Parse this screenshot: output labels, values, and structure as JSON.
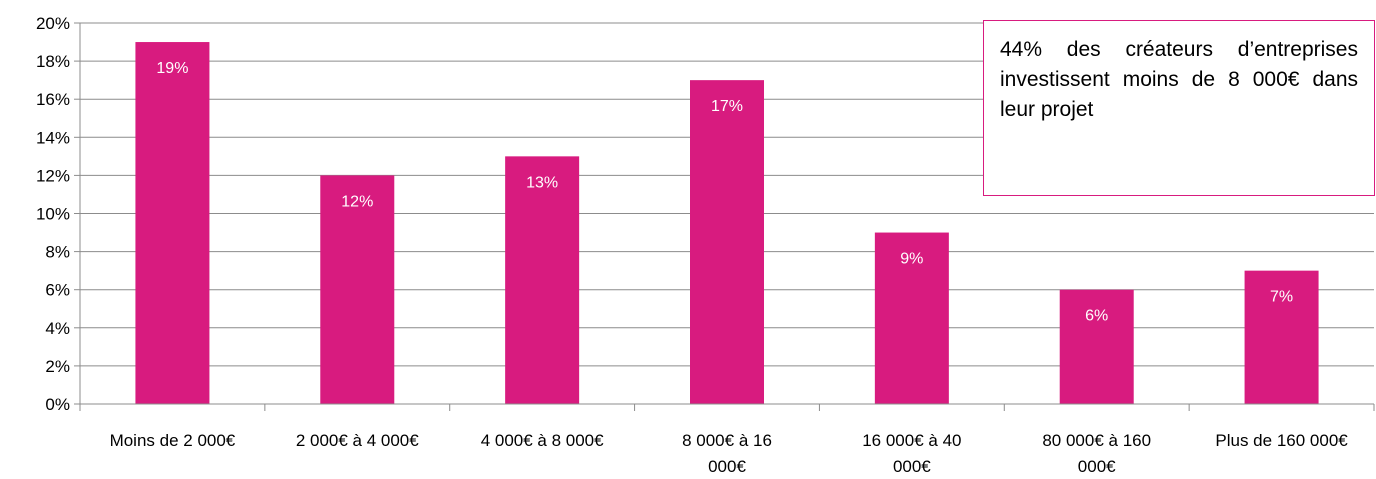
{
  "chart_data": {
    "type": "bar",
    "categories": [
      [
        "Moins de 2 000€"
      ],
      [
        "2 000€ à 4 000€"
      ],
      [
        "4 000€ à 8 000€"
      ],
      [
        "8 000€ à 16",
        "000€"
      ],
      [
        "16 000€ à 40",
        "000€"
      ],
      [
        "80 000€ à 160",
        "000€"
      ],
      [
        "Plus de 160 000€"
      ]
    ],
    "values": [
      19,
      12,
      13,
      17,
      9,
      6,
      7
    ],
    "data_labels": [
      "19%",
      "12%",
      "13%",
      "17%",
      "9%",
      "6%",
      "7%"
    ],
    "y_ticks": [
      "0%",
      "2%",
      "4%",
      "6%",
      "8%",
      "10%",
      "12%",
      "14%",
      "16%",
      "18%",
      "20%"
    ],
    "ylim": [
      0,
      20
    ],
    "grid": true,
    "bar_color": "#d81b7f",
    "annotation": "44% des créateurs d’entreprises investissent moins de 8 000€ dans leur projet"
  }
}
